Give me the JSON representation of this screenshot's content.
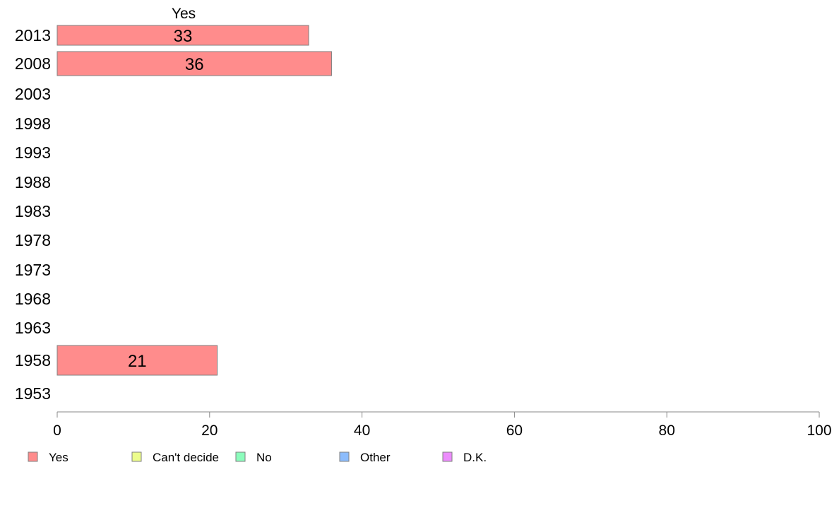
{
  "chart_data": {
    "type": "bar",
    "orientation": "horizontal",
    "stacked": true,
    "title": "",
    "xlabel": "",
    "ylabel": "",
    "xlim": [
      0,
      100
    ],
    "x_ticks": [
      "0",
      "20",
      "40",
      "60",
      "80",
      "100"
    ],
    "grid": false,
    "legend_position": "bottom",
    "series_header": "Yes",
    "categories": [
      "2013",
      "2008",
      "2003",
      "1998",
      "1993",
      "1988",
      "1983",
      "1978",
      "1973",
      "1968",
      "1963",
      "1958",
      "1953"
    ],
    "series": [
      {
        "name": "Yes",
        "color": "#ff8c8c",
        "values": [
          33,
          36,
          null,
          null,
          null,
          null,
          null,
          null,
          null,
          null,
          null,
          21,
          null
        ],
        "labels": [
          "33",
          "36",
          "",
          "",
          "",
          "",
          "",
          "",
          "",
          "",
          "",
          "21",
          ""
        ]
      },
      {
        "name": "Can't decide",
        "color": "#ecfc8c",
        "values": [
          null,
          null,
          null,
          null,
          null,
          null,
          null,
          null,
          null,
          null,
          null,
          null,
          null
        ]
      },
      {
        "name": "No",
        "color": "#8cfcbc",
        "values": [
          null,
          null,
          null,
          null,
          null,
          null,
          null,
          null,
          null,
          null,
          null,
          null,
          null
        ]
      },
      {
        "name": "Other",
        "color": "#8cbcfc",
        "values": [
          null,
          null,
          null,
          null,
          null,
          null,
          null,
          null,
          null,
          null,
          null,
          null,
          null
        ]
      },
      {
        "name": "D.K.",
        "color": "#ec8cfc",
        "values": [
          null,
          null,
          null,
          null,
          null,
          null,
          null,
          null,
          null,
          null,
          null,
          null,
          null
        ]
      }
    ]
  }
}
